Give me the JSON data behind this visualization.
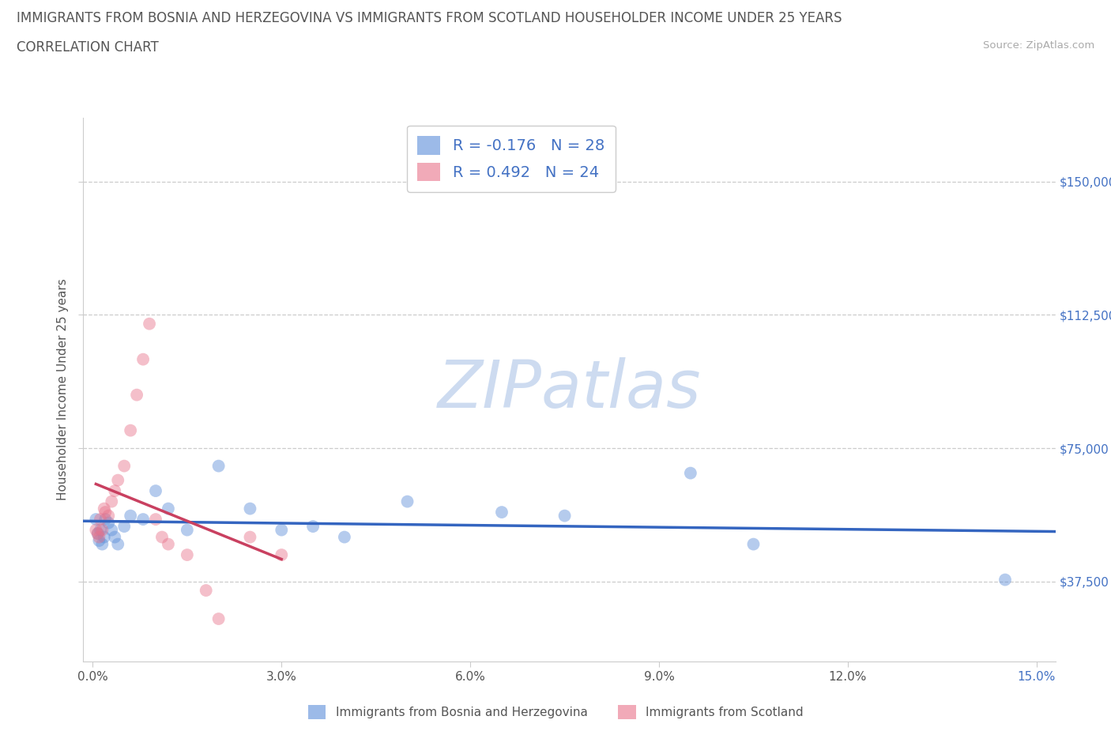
{
  "title_line1": "IMMIGRANTS FROM BOSNIA AND HERZEGOVINA VS IMMIGRANTS FROM SCOTLAND HOUSEHOLDER INCOME UNDER 25 YEARS",
  "title_line2": "CORRELATION CHART",
  "source": "Source: ZipAtlas.com",
  "xlabel_tick_vals": [
    0.0,
    3.0,
    6.0,
    9.0,
    12.0,
    15.0
  ],
  "ylabel_tick_vals": [
    37500,
    75000,
    112500,
    150000
  ],
  "xlim": [
    -0.15,
    15.3
  ],
  "ylim": [
    15000,
    168000
  ],
  "r_bosnia": -0.176,
  "n_bosnia": 28,
  "r_scotland": 0.492,
  "n_scotland": 24,
  "bosnia_color": "#5b8dd9",
  "scotland_color": "#e8728a",
  "bosnia_line_color": "#3465c0",
  "scotland_line_color": "#c94060",
  "dot_alpha": 0.45,
  "dot_size": 130,
  "bosnia_x": [
    0.05,
    0.08,
    0.1,
    0.12,
    0.15,
    0.18,
    0.2,
    0.25,
    0.3,
    0.35,
    0.4,
    0.5,
    0.6,
    0.8,
    1.0,
    1.2,
    1.5,
    2.0,
    2.5,
    3.0,
    3.5,
    4.0,
    5.0,
    6.5,
    7.5,
    9.5,
    10.5,
    14.5
  ],
  "bosnia_y": [
    55000,
    51000,
    49000,
    52000,
    48000,
    50000,
    55000,
    54000,
    52000,
    50000,
    48000,
    53000,
    56000,
    55000,
    63000,
    58000,
    52000,
    70000,
    58000,
    52000,
    53000,
    50000,
    60000,
    57000,
    56000,
    68000,
    48000,
    38000
  ],
  "scotland_x": [
    0.05,
    0.08,
    0.1,
    0.12,
    0.15,
    0.18,
    0.2,
    0.25,
    0.3,
    0.35,
    0.4,
    0.5,
    0.6,
    0.7,
    0.8,
    0.9,
    1.0,
    1.1,
    1.2,
    1.5,
    1.8,
    2.0,
    2.5,
    3.0
  ],
  "scotland_y": [
    52000,
    51000,
    50000,
    55000,
    52000,
    58000,
    57000,
    56000,
    60000,
    63000,
    66000,
    70000,
    80000,
    90000,
    100000,
    110000,
    55000,
    50000,
    48000,
    45000,
    35000,
    27000,
    50000,
    45000
  ],
  "grid_color": "#cccccc",
  "spine_color": "#cccccc",
  "tick_color": "#555555",
  "right_tick_color": "#4472c4",
  "title_color": "#555555",
  "source_color": "#aaaaaa",
  "watermark_text": "ZIPatlas",
  "watermark_color": "#c8d8ef",
  "axis_label_color": "#555555"
}
